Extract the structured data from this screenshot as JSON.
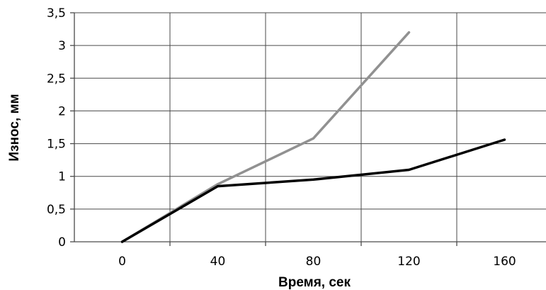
{
  "chart_data": {
    "type": "line",
    "title": "",
    "xlabel": "Время, сек",
    "ylabel": "Износ, мм",
    "xlim": [
      -20,
      180
    ],
    "ylim": [
      0,
      3.5
    ],
    "x_ticks": [
      0,
      40,
      80,
      120,
      160
    ],
    "x_tick_labels": [
      "0",
      "40",
      "80",
      "120",
      "160"
    ],
    "y_ticks": [
      0,
      0.5,
      1,
      1.5,
      2,
      2.5,
      3,
      3.5
    ],
    "y_tick_labels": [
      "0",
      "0,5",
      "1",
      "1,5",
      "2",
      "2,5",
      "3",
      "3,5"
    ],
    "grid": true,
    "series": [
      {
        "color": "#919191",
        "points": [
          [
            0,
            0
          ],
          [
            40,
            0.88
          ],
          [
            80,
            1.58
          ],
          [
            120,
            3.2
          ]
        ]
      },
      {
        "color": "#000000",
        "points": [
          [
            0,
            0
          ],
          [
            40,
            0.85
          ],
          [
            80,
            0.95
          ],
          [
            120,
            1.1
          ],
          [
            160,
            1.56
          ]
        ]
      }
    ]
  }
}
